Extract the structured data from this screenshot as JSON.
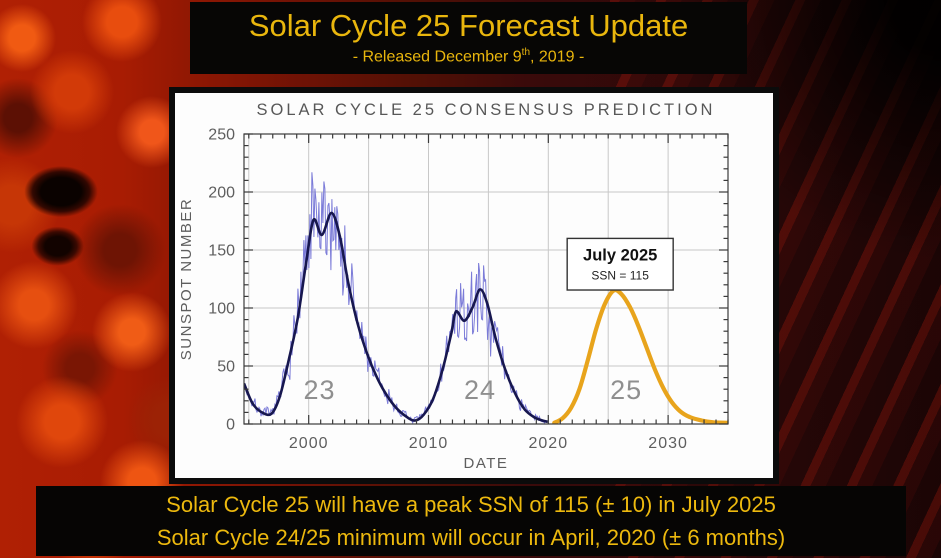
{
  "header": {
    "title": "Solar Cycle 25 Forecast Update",
    "released_prefix": "- Released December 9",
    "released_sup": "th",
    "released_suffix": ", 2019 -"
  },
  "footer": {
    "line1": "Solar Cycle 25 will have a peak SSN of 115 (± 10) in July 2025",
    "line2": "Solar Cycle 24/25 minimum will occur in April, 2020 (± 6 months)"
  },
  "colors": {
    "slide_gold": "#E9B60D",
    "band_black": "#070605",
    "panel_white": "#FDFDFD",
    "axis_gray": "#3A3A3A",
    "tick_label_gray": "#5E5E5E",
    "grid_gray": "#C8C8C8",
    "cycle_label_gray": "#8F8F8F",
    "monthly_blue": "#7B7BD8",
    "smoothed_navy": "#17174F",
    "prediction_orange": "#E8A41C"
  },
  "chart_data": {
    "type": "line",
    "title": "SOLAR CYCLE 25 CONSENSUS PREDICTION",
    "xlabel": "DATE",
    "ylabel": "SUNSPOT NUMBER",
    "xlim": [
      1994.6,
      2035.0
    ],
    "ylim": [
      0,
      250
    ],
    "xticks": [
      2000,
      2010,
      2020,
      2030
    ],
    "yticks": [
      0,
      50,
      100,
      150,
      200,
      250
    ],
    "grid": {
      "x_step": 5,
      "y_step": 50
    },
    "minor_ticks": {
      "x_step": 1,
      "y_step": 10
    },
    "cycle_labels": [
      {
        "text": "23",
        "year": 2000.9,
        "ssn": 30
      },
      {
        "text": "24",
        "year": 2014.3,
        "ssn": 30
      },
      {
        "text": "25",
        "year": 2026.5,
        "ssn": 30
      }
    ],
    "annotation": {
      "line1": "July 2025",
      "line2": "SSN = 115",
      "year": 2026.0,
      "ssn_top": 160,
      "ssn_bottom": 115.5
    },
    "series": [
      {
        "name": "monthly-observed",
        "type": "derived-noisy",
        "base": "smoothed-observed",
        "samples_per_year": 12,
        "seed": 7,
        "color": "#7B7BD8",
        "width": 1
      },
      {
        "name": "smoothed-observed",
        "color": "#17174F",
        "width": 2.6,
        "points": [
          [
            1994.6,
            35
          ],
          [
            1995.3,
            18
          ],
          [
            1996.1,
            10
          ],
          [
            1996.9,
            9
          ],
          [
            1997.6,
            24
          ],
          [
            1998.4,
            58
          ],
          [
            1999.1,
            92
          ],
          [
            1999.8,
            140
          ],
          [
            2000.4,
            176
          ],
          [
            2001.1,
            163
          ],
          [
            2001.9,
            182
          ],
          [
            2002.6,
            162
          ],
          [
            2003.3,
            122
          ],
          [
            2004.1,
            86
          ],
          [
            2004.9,
            60
          ],
          [
            2005.7,
            40
          ],
          [
            2006.5,
            25
          ],
          [
            2007.3,
            14
          ],
          [
            2008.2,
            6
          ],
          [
            2008.9,
            3
          ],
          [
            2009.6,
            8
          ],
          [
            2010.4,
            22
          ],
          [
            2011.2,
            48
          ],
          [
            2011.9,
            78
          ],
          [
            2012.3,
            97
          ],
          [
            2013.0,
            89
          ],
          [
            2013.7,
            101
          ],
          [
            2014.3,
            116
          ],
          [
            2014.9,
            104
          ],
          [
            2015.6,
            74
          ],
          [
            2016.4,
            47
          ],
          [
            2017.2,
            27
          ],
          [
            2018.0,
            13
          ],
          [
            2018.8,
            6
          ],
          [
            2019.5,
            3
          ],
          [
            2019.95,
            2
          ]
        ]
      },
      {
        "name": "cycle25-prediction",
        "color": "#E8A41C",
        "width": 4.2,
        "points": [
          [
            2020.5,
            1
          ],
          [
            2021.2,
            5
          ],
          [
            2021.9,
            14
          ],
          [
            2022.6,
            30
          ],
          [
            2023.3,
            55
          ],
          [
            2024.0,
            82
          ],
          [
            2024.7,
            103
          ],
          [
            2025.45,
            115
          ],
          [
            2026.1,
            112
          ],
          [
            2026.8,
            101
          ],
          [
            2027.5,
            85
          ],
          [
            2028.2,
            66
          ],
          [
            2028.9,
            47
          ],
          [
            2029.6,
            31
          ],
          [
            2030.3,
            19
          ],
          [
            2031.0,
            11
          ],
          [
            2031.8,
            6
          ],
          [
            2032.8,
            3
          ],
          [
            2033.8,
            1.5
          ],
          [
            2035.0,
            1
          ]
        ]
      }
    ]
  }
}
